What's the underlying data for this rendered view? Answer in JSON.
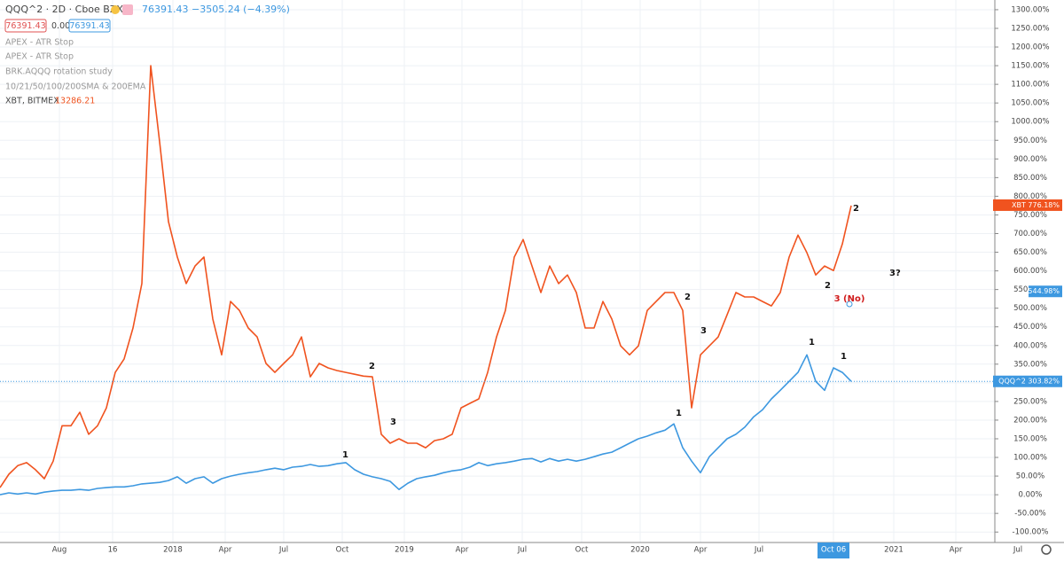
{
  "header": {
    "title": "QQQ^2 · 2D · Cboe BZX",
    "quote": "76391.43 −3505.24 (−4.39%)",
    "boxes": [
      "76391.43",
      "0.00",
      "76391.43"
    ],
    "studies": [
      "APEX - ATR Stop",
      "APEX - ATR Stop",
      "BRK.AQQQ rotation study",
      "10/21/50/100/200SMA & 200EMA"
    ],
    "compare": "XBT, BITMEX",
    "compare_value": "13286.21"
  },
  "chart_data": {
    "type": "line",
    "xlim": [
      0,
      112.2
    ],
    "ylim": [
      -128,
      1326
    ],
    "grid": true,
    "xticks": [
      {
        "value": 6.7,
        "label": "Aug"
      },
      {
        "value": 12.7,
        "label": "16"
      },
      {
        "value": 19.5,
        "label": "2018"
      },
      {
        "value": 25.4,
        "label": "Apr"
      },
      {
        "value": 32,
        "label": "Jul"
      },
      {
        "value": 38.6,
        "label": "Oct"
      },
      {
        "value": 45.6,
        "label": "2019"
      },
      {
        "value": 52.1,
        "label": "Apr"
      },
      {
        "value": 58.9,
        "label": "Jul"
      },
      {
        "value": 65.6,
        "label": "Oct"
      },
      {
        "value": 72.2,
        "label": "2020"
      },
      {
        "value": 79,
        "label": "Apr"
      },
      {
        "value": 85.6,
        "label": "Jul"
      },
      {
        "value": 94,
        "label": "Oct 06"
      },
      {
        "value": 100.8,
        "label": "2021"
      },
      {
        "value": 107.8,
        "label": "Apr"
      },
      {
        "value": 114.8,
        "label": "Jul"
      }
    ],
    "yticks": [
      {
        "value": 1300,
        "label": "1300.00%"
      },
      {
        "value": 1250,
        "label": "1250.00%"
      },
      {
        "value": 1200,
        "label": "1200.00%"
      },
      {
        "value": 1150,
        "label": "1150.00%"
      },
      {
        "value": 1100,
        "label": "1100.00%"
      },
      {
        "value": 1050,
        "label": "1050.00%"
      },
      {
        "value": 1000,
        "label": "1000.00%"
      },
      {
        "value": 950,
        "label": "950.00%"
      },
      {
        "value": 900,
        "label": "900.00%"
      },
      {
        "value": 850,
        "label": "850.00%"
      },
      {
        "value": 800,
        "label": "800.00%"
      },
      {
        "value": 750,
        "label": "750.00%"
      },
      {
        "value": 700,
        "label": "700.00%"
      },
      {
        "value": 650,
        "label": "650.00%"
      },
      {
        "value": 600,
        "label": "600.00%"
      },
      {
        "value": 550,
        "label": "550.00%"
      },
      {
        "value": 500,
        "label": "500.00%"
      },
      {
        "value": 450,
        "label": "450.00%"
      },
      {
        "value": 400,
        "label": "400.00%"
      },
      {
        "value": 350,
        "label": "350.00%"
      },
      {
        "value": 300,
        "label": "300.00%"
      },
      {
        "value": 250,
        "label": "250.00%"
      },
      {
        "value": 200,
        "label": "200.00%"
      },
      {
        "value": 150,
        "label": "150.00%"
      },
      {
        "value": 100,
        "label": "100.00%"
      },
      {
        "value": 50,
        "label": "50.00%"
      },
      {
        "value": 0,
        "label": "0.00%"
      },
      {
        "value": -50,
        "label": "-50.00%"
      },
      {
        "value": -100,
        "label": "-100.00%"
      }
    ],
    "series": [
      {
        "name": "XBT",
        "color": "#f0531f",
        "values": [
          19,
          55,
          78,
          86,
          67,
          43,
          90,
          185,
          185,
          221,
          162,
          185,
          233,
          328,
          364,
          447,
          566,
          1150,
          946,
          732,
          637,
          566,
          613,
          637,
          471,
          375,
          518,
          494,
          447,
          423,
          352,
          328,
          352,
          375,
          423,
          316,
          352,
          340,
          333,
          328,
          323,
          318,
          316,
          162,
          138,
          150,
          138,
          138,
          126,
          145,
          150,
          162,
          233,
          245,
          257,
          328,
          423,
          494,
          637,
          684,
          613,
          542,
          613,
          566,
          589,
          542,
          447,
          447,
          518,
          471,
          399,
          375,
          399,
          494,
          518,
          542,
          542,
          494,
          233,
          375,
          399,
          423,
          482,
          542,
          530,
          530,
          518,
          506,
          542,
          637,
          696,
          649,
          589,
          613,
          601,
          672,
          775
        ]
      },
      {
        "name": "QQQ^2",
        "color": "#3d98e0",
        "values": [
          0,
          5,
          2,
          5,
          2,
          7,
          10,
          12,
          12,
          14,
          12,
          17,
          19,
          21,
          21,
          24,
          29,
          31,
          33,
          38,
          48,
          31,
          43,
          48,
          31,
          43,
          50,
          55,
          59,
          62,
          67,
          71,
          67,
          74,
          76,
          81,
          76,
          78,
          83,
          86,
          67,
          55,
          48,
          43,
          36,
          14,
          31,
          43,
          48,
          52,
          59,
          64,
          67,
          74,
          86,
          78,
          83,
          86,
          90,
          95,
          97,
          88,
          97,
          90,
          95,
          90,
          95,
          102,
          109,
          114,
          126,
          138,
          150,
          157,
          166,
          173,
          190,
          126,
          90,
          59,
          102,
          126,
          150,
          162,
          181,
          209,
          228,
          257,
          280,
          304,
          328,
          375,
          304,
          280,
          340,
          328,
          304
        ]
      }
    ],
    "last_value_labels": [
      {
        "value": 776.18,
        "label": "XBT  776.18%",
        "color": "#f0531f"
      },
      {
        "value": 544.98,
        "label": "544.98%",
        "color": "#3d98e0"
      },
      {
        "value": 303.82,
        "label": "QQQ^2  303.82%",
        "color": "#3d98e0"
      }
    ],
    "annotations": [
      "2",
      "3",
      "1",
      "1",
      "2",
      "3",
      "1",
      "1",
      "2",
      "2",
      "3 (No)",
      "3?"
    ]
  }
}
